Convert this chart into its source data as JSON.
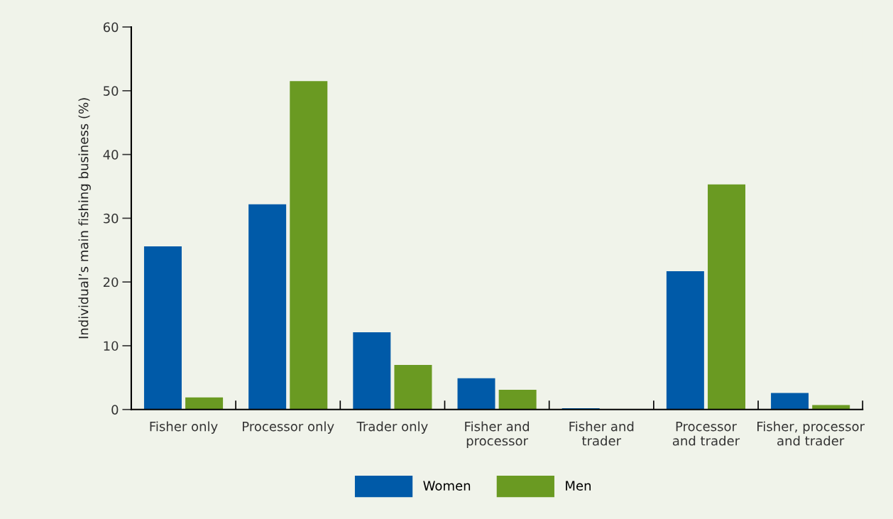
{
  "chart_data": {
    "type": "bar",
    "categories": [
      "Fisher only",
      "Processor only",
      "Trader only",
      "Fisher and\nprocessor",
      "Fisher and\ntrader",
      "Processor\nand trader",
      "Fisher, processor\nand trader"
    ],
    "series": [
      {
        "name": "Women",
        "color": "#005aa8",
        "values": [
          25.6,
          32.2,
          12.1,
          4.9,
          0.2,
          21.7,
          2.6
        ]
      },
      {
        "name": "Men",
        "color": "#6a9a22",
        "values": [
          1.9,
          51.5,
          7.0,
          3.1,
          0,
          35.3,
          0.7
        ]
      }
    ],
    "ylabel": "Individual’s main fishing business (%)",
    "ylim": [
      0,
      60
    ],
    "yticks": [
      0,
      10,
      20,
      30,
      40,
      50,
      60
    ],
    "grid": false,
    "legend": "bottom"
  }
}
